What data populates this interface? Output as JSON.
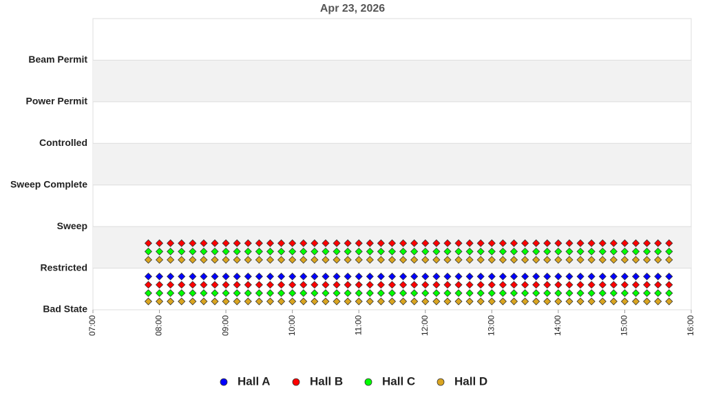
{
  "chart_data": {
    "type": "scatter",
    "title": "Apr 23, 2026",
    "x": [
      "07:50",
      "08:00",
      "08:10",
      "08:20",
      "08:30",
      "08:40",
      "08:50",
      "09:00",
      "09:10",
      "09:20",
      "09:30",
      "09:40",
      "09:50",
      "10:00",
      "10:10",
      "10:20",
      "10:30",
      "10:40",
      "10:50",
      "11:00",
      "11:10",
      "11:20",
      "11:30",
      "11:40",
      "11:50",
      "12:00",
      "12:10",
      "12:20",
      "12:30",
      "12:40",
      "12:50",
      "13:00",
      "13:10",
      "13:20",
      "13:30",
      "13:40",
      "13:50",
      "14:00",
      "14:10",
      "14:20",
      "14:30",
      "14:40",
      "14:50",
      "15:00",
      "15:10",
      "15:20",
      "15:30",
      "15:40"
    ],
    "xlim": [
      "07:00",
      "16:00"
    ],
    "xticks": [
      "07:00",
      "08:00",
      "09:00",
      "10:00",
      "11:00",
      "12:00",
      "13:00",
      "14:00",
      "15:00",
      "16:00"
    ],
    "ylim": [
      0,
      7
    ],
    "yticks": [
      {
        "value": 0,
        "label": "Bad State"
      },
      {
        "value": 1,
        "label": "Restricted"
      },
      {
        "value": 2,
        "label": "Sweep"
      },
      {
        "value": 3,
        "label": "Sweep Complete"
      },
      {
        "value": 4,
        "label": "Controlled"
      },
      {
        "value": 5,
        "label": "Power Permit"
      },
      {
        "value": 6,
        "label": "Beam Permit"
      }
    ],
    "grid": true,
    "legend": "bottom",
    "series": [
      {
        "name": "Hall A",
        "color": "#0000ff",
        "rows": [
          {
            "values": [
              0.8,
              0.8,
              0.8,
              0.8,
              0.8,
              0.8,
              0.8,
              0.8,
              0.8,
              0.8,
              0.8,
              0.8,
              0.8,
              0.8,
              0.8,
              0.8,
              0.8,
              0.8,
              0.8,
              0.8,
              0.8,
              0.8,
              0.8,
              0.8,
              0.8,
              0.8,
              0.8,
              0.8,
              0.8,
              0.8,
              0.8,
              0.8,
              0.8,
              0.8,
              0.8,
              0.8,
              0.8,
              0.8,
              0.8,
              0.8,
              0.8,
              0.8,
              0.8,
              0.8,
              0.8,
              0.8,
              0.8,
              0.8
            ]
          }
        ]
      },
      {
        "name": "Hall B",
        "color": "#ff0000",
        "rows": [
          {
            "values": [
              1.6,
              1.6,
              1.6,
              1.6,
              1.6,
              1.6,
              1.6,
              1.6,
              1.6,
              1.6,
              1.6,
              1.6,
              1.6,
              1.6,
              1.6,
              1.6,
              1.6,
              1.6,
              1.6,
              1.6,
              1.6,
              1.6,
              1.6,
              1.6,
              1.6,
              1.6,
              1.6,
              1.6,
              1.6,
              1.6,
              1.6,
              1.6,
              1.6,
              1.6,
              1.6,
              1.6,
              1.6,
              1.6,
              1.6,
              1.6,
              1.6,
              1.6,
              1.6,
              1.6,
              1.6,
              1.6,
              1.6,
              1.6
            ]
          },
          {
            "values": [
              0.6,
              0.6,
              0.6,
              0.6,
              0.6,
              0.6,
              0.6,
              0.6,
              0.6,
              0.6,
              0.6,
              0.6,
              0.6,
              0.6,
              0.6,
              0.6,
              0.6,
              0.6,
              0.6,
              0.6,
              0.6,
              0.6,
              0.6,
              0.6,
              0.6,
              0.6,
              0.6,
              0.6,
              0.6,
              0.6,
              0.6,
              0.6,
              0.6,
              0.6,
              0.6,
              0.6,
              0.6,
              0.6,
              0.6,
              0.6,
              0.6,
              0.6,
              0.6,
              0.6,
              0.6,
              0.6,
              0.6,
              0.6
            ]
          }
        ]
      },
      {
        "name": "Hall C",
        "color": "#00ff00",
        "rows": [
          {
            "values": [
              1.4,
              1.4,
              1.4,
              1.4,
              1.4,
              1.4,
              1.4,
              1.4,
              1.4,
              1.4,
              1.4,
              1.4,
              1.4,
              1.4,
              1.4,
              1.4,
              1.4,
              1.4,
              1.4,
              1.4,
              1.4,
              1.4,
              1.4,
              1.4,
              1.4,
              1.4,
              1.4,
              1.4,
              1.4,
              1.4,
              1.4,
              1.4,
              1.4,
              1.4,
              1.4,
              1.4,
              1.4,
              1.4,
              1.4,
              1.4,
              1.4,
              1.4,
              1.4,
              1.4,
              1.4,
              1.4,
              1.4,
              1.4
            ]
          },
          {
            "values": [
              0.4,
              0.4,
              0.4,
              0.4,
              0.4,
              0.4,
              0.4,
              0.4,
              0.4,
              0.4,
              0.4,
              0.4,
              0.4,
              0.4,
              0.4,
              0.4,
              0.4,
              0.4,
              0.4,
              0.4,
              0.4,
              0.4,
              0.4,
              0.4,
              0.4,
              0.4,
              0.4,
              0.4,
              0.4,
              0.4,
              0.4,
              0.4,
              0.4,
              0.4,
              0.4,
              0.4,
              0.4,
              0.4,
              0.4,
              0.4,
              0.4,
              0.4,
              0.4,
              0.4,
              0.4,
              0.4,
              0.4,
              0.4
            ]
          }
        ]
      },
      {
        "name": "Hall D",
        "color": "#daa520",
        "rows": [
          {
            "values": [
              1.2,
              1.2,
              1.2,
              1.2,
              1.2,
              1.2,
              1.2,
              1.2,
              1.2,
              1.2,
              1.2,
              1.2,
              1.2,
              1.2,
              1.2,
              1.2,
              1.2,
              1.2,
              1.2,
              1.2,
              1.2,
              1.2,
              1.2,
              1.2,
              1.2,
              1.2,
              1.2,
              1.2,
              1.2,
              1.2,
              1.2,
              1.2,
              1.2,
              1.2,
              1.2,
              1.2,
              1.2,
              1.2,
              1.2,
              1.2,
              1.2,
              1.2,
              1.2,
              1.2,
              1.2,
              1.2,
              1.2,
              1.2
            ]
          },
          {
            "values": [
              0.2,
              0.2,
              0.2,
              0.2,
              0.2,
              0.2,
              0.2,
              0.2,
              0.2,
              0.2,
              0.2,
              0.2,
              0.2,
              0.2,
              0.2,
              0.2,
              0.2,
              0.2,
              0.2,
              0.2,
              0.2,
              0.2,
              0.2,
              0.2,
              0.2,
              0.2,
              0.2,
              0.2,
              0.2,
              0.2,
              0.2,
              0.2,
              0.2,
              0.2,
              0.2,
              0.2,
              0.2,
              0.2,
              0.2,
              0.2,
              0.2,
              0.2,
              0.2,
              0.2,
              0.2,
              0.2,
              0.2,
              0.2
            ]
          }
        ]
      }
    ]
  }
}
